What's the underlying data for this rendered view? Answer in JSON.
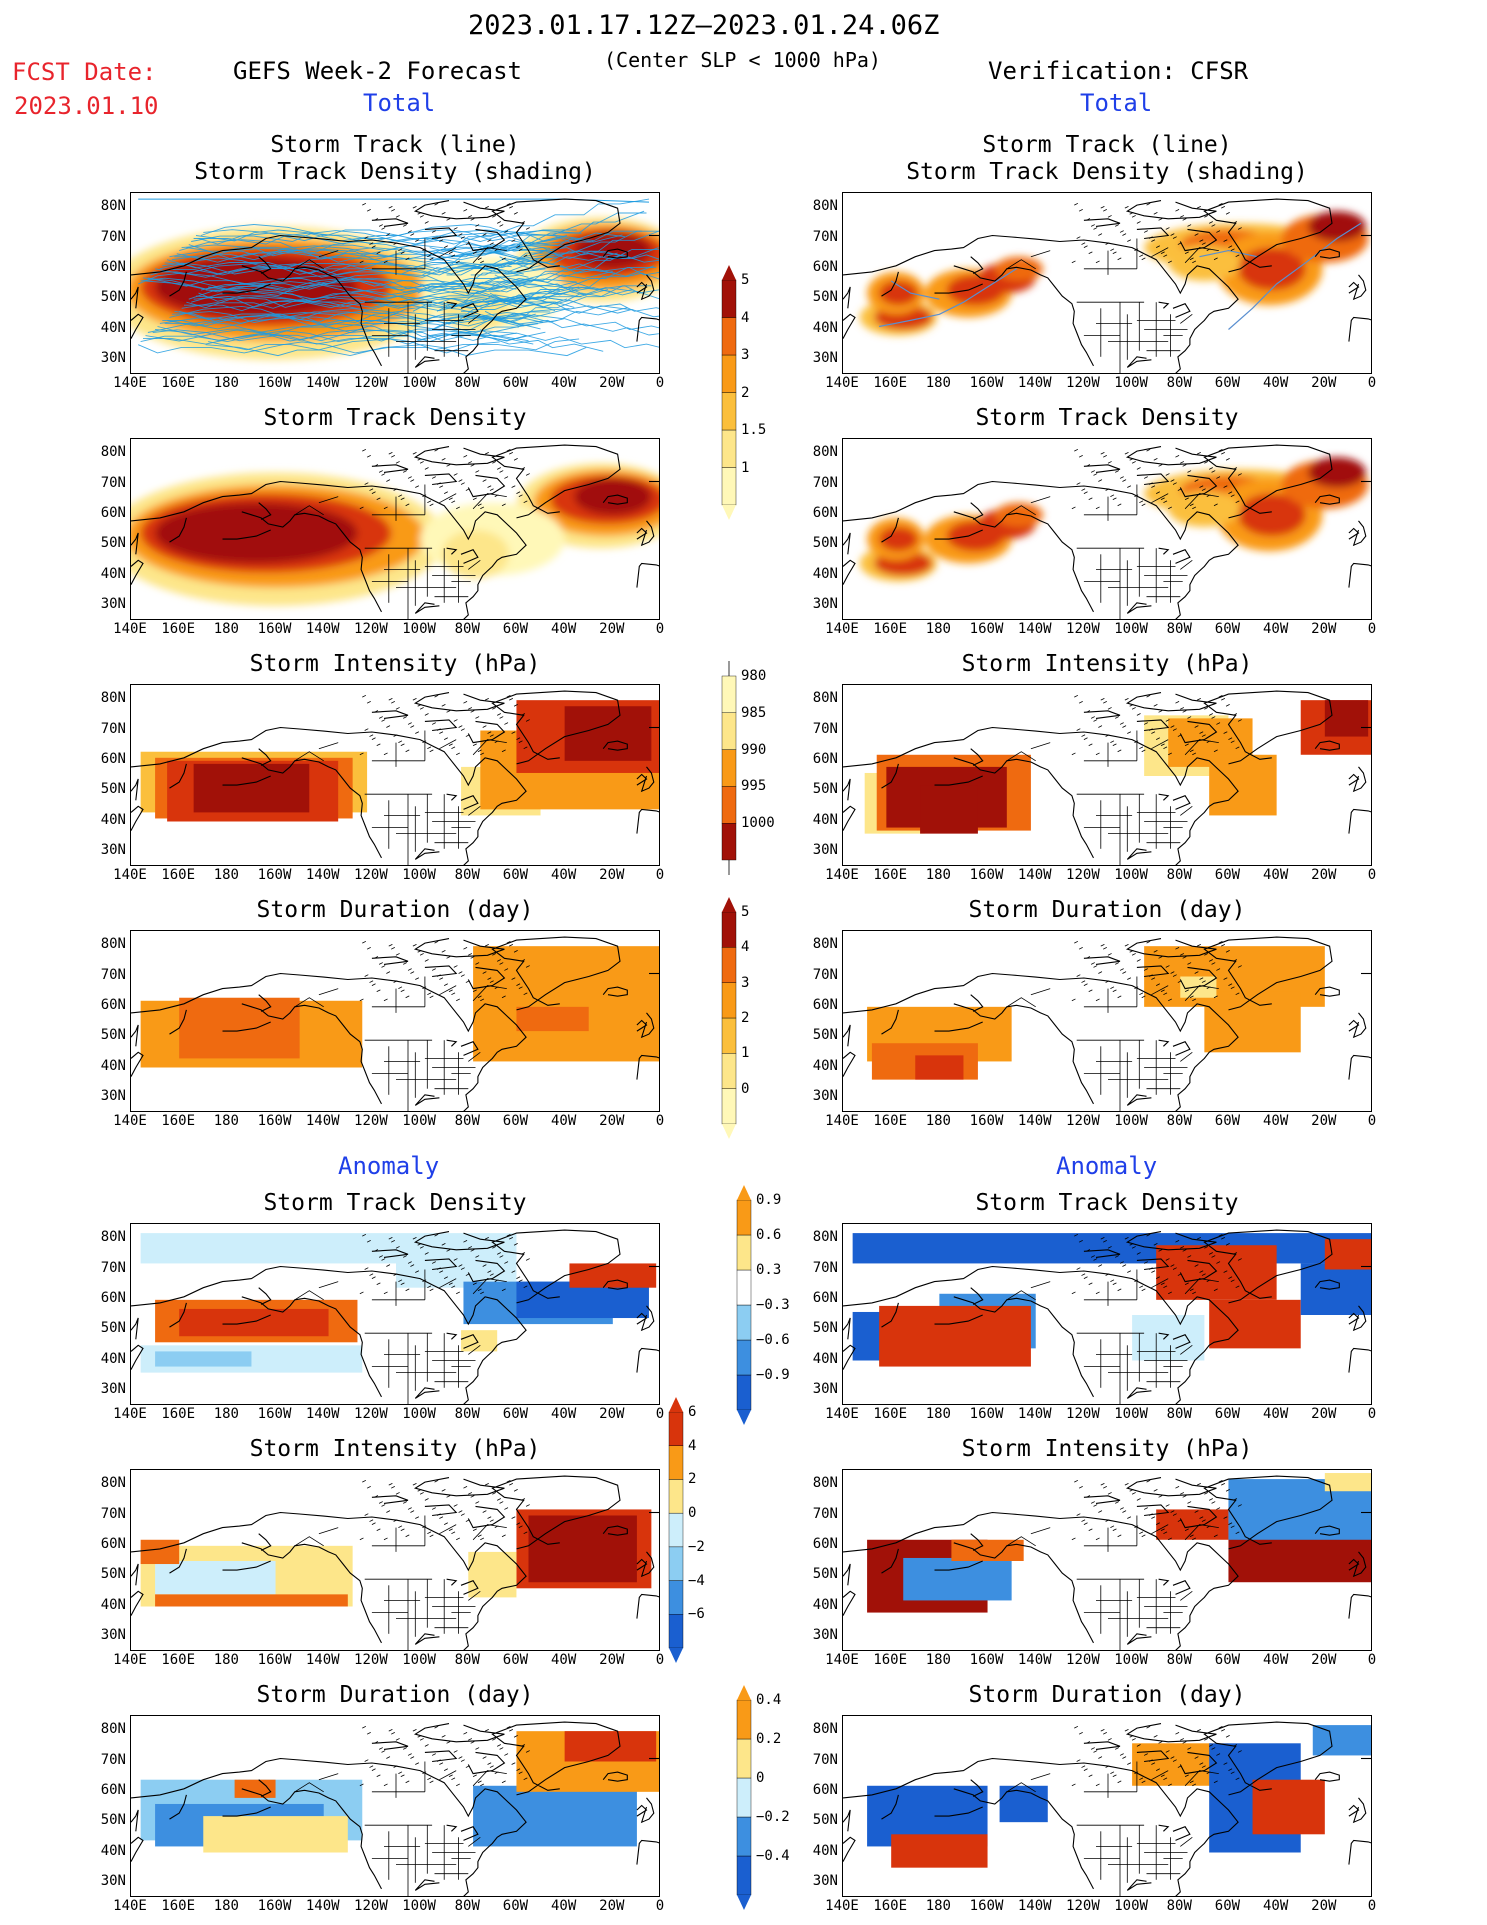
{
  "header": {
    "period": "2023.01.17.12Z–2023.01.24.06Z",
    "criterion": "(Center SLP < 1000 hPa)",
    "fcst_label": "FCST Date:",
    "fcst_date": "2023.01.10",
    "left_title": "GEFS Week-2 Forecast",
    "right_title": "Verification: CFSR",
    "total_label": "Total",
    "anomaly_label": "Anomaly"
  },
  "axes": {
    "lat_ticks": [
      "80N",
      "70N",
      "60N",
      "50N",
      "40N",
      "30N"
    ],
    "lon_ticks": [
      "140E",
      "160E",
      "180",
      "160W",
      "140W",
      "120W",
      "100W",
      "80W",
      "60W",
      "40W",
      "20W",
      "0"
    ]
  },
  "panel_titles": {
    "track": [
      "Storm Track (line)",
      "Storm Track Density (shading)"
    ],
    "density": "Storm Track Density",
    "intensity": "Storm Intensity (hPa)",
    "duration": "Storm Duration (day)"
  },
  "colorbars": {
    "total_density": [
      "1",
      "1.5",
      "2",
      "3",
      "4",
      "5"
    ],
    "total_intensity": [
      "1000",
      "995",
      "990",
      "985",
      "980"
    ],
    "total_duration": [
      "0",
      "1",
      "2",
      "3",
      "4",
      "5"
    ],
    "anom_density": [
      "−0.9",
      "−0.6",
      "−0.3",
      "0.3",
      "0.6",
      "0.9"
    ],
    "anom_intensity": [
      "−6",
      "−4",
      "−2",
      "0",
      "2",
      "4",
      "6"
    ],
    "anom_duration": [
      "−0.4",
      "−0.2",
      "0",
      "0.2",
      "0.4"
    ]
  },
  "colors": {
    "warm": [
      "#fff8b8",
      "#fde68a",
      "#fbbf3c",
      "#f99a17",
      "#ef6a10",
      "#d8340c",
      "#a11108"
    ],
    "cool": [
      "#cdeefb",
      "#8ccdf2",
      "#3d8fe0",
      "#1a5fd0"
    ],
    "track_line": "#1e9be0",
    "title_blue": "#1f3fe8",
    "fcst_red": "#e8242c"
  }
}
